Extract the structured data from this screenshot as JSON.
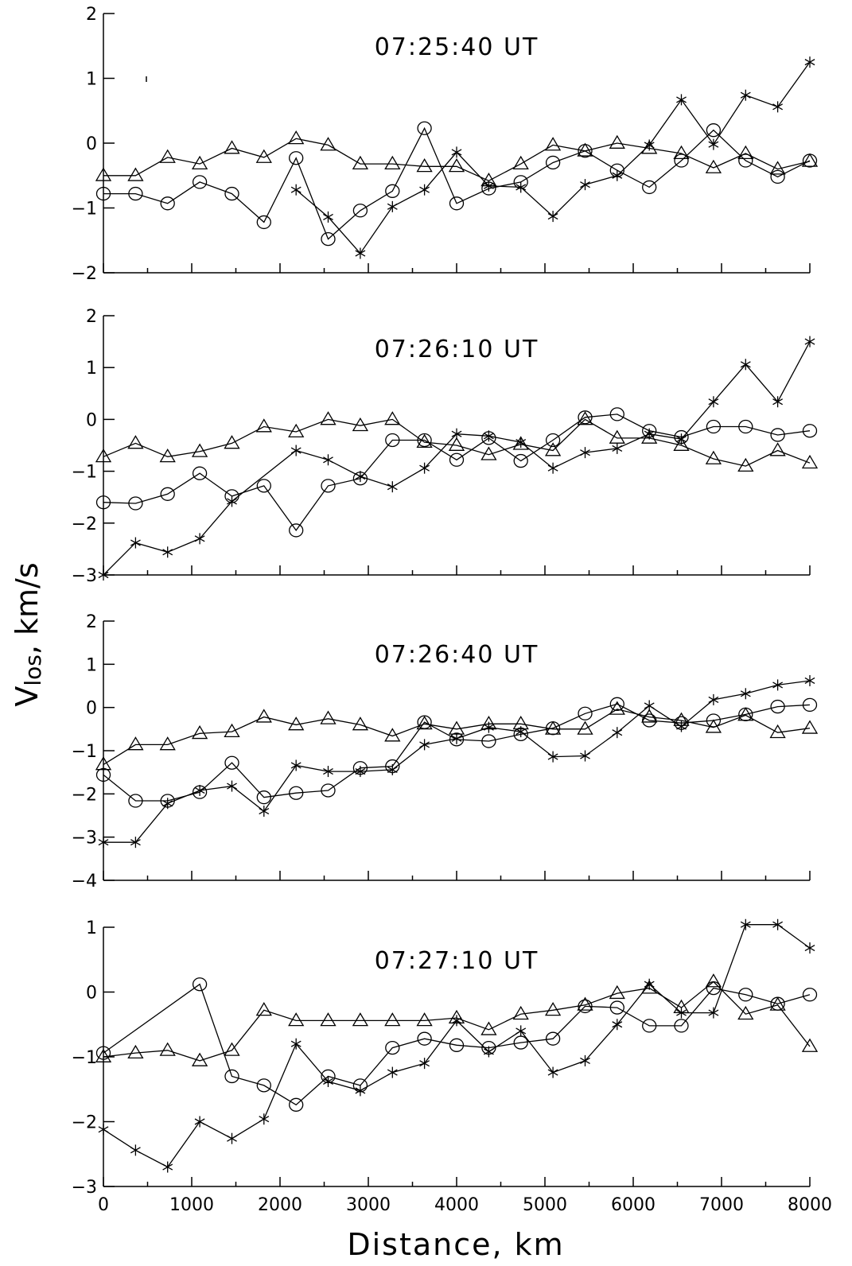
{
  "chart_data": [
    {
      "type": "line",
      "title": "07:25:40  UT",
      "x": [
        0,
        364,
        727,
        1091,
        1455,
        1818,
        2182,
        2545,
        2909,
        3273,
        3636,
        4000,
        4364,
        4727,
        5091,
        5455,
        5818,
        6182,
        6545,
        6909,
        7273,
        7636,
        8000
      ],
      "xlim": [
        0,
        8000
      ],
      "ylim": [
        -2,
        2
      ],
      "yticks": [
        -2,
        -1,
        0,
        1,
        2
      ],
      "series": [
        {
          "marker": "triangle",
          "values": [
            -0.5,
            -0.5,
            -0.22,
            -0.32,
            -0.08,
            -0.22,
            0.07,
            -0.03,
            -0.32,
            -0.32,
            -0.36,
            -0.36,
            -0.58,
            -0.32,
            -0.03,
            -0.12,
            0.0,
            -0.08,
            -0.16,
            -0.38,
            -0.16,
            -0.4,
            -0.28
          ]
        },
        {
          "marker": "circle",
          "values": [
            -0.78,
            -0.78,
            -0.93,
            -0.6,
            -0.78,
            -1.22,
            -0.23,
            -1.48,
            -1.04,
            -0.74,
            0.23,
            -0.93,
            -0.7,
            -0.6,
            -0.3,
            -0.12,
            -0.42,
            -0.68,
            -0.27,
            0.2,
            -0.27,
            -0.52,
            -0.27
          ]
        },
        {
          "marker": "star",
          "values": [
            null,
            null,
            null,
            null,
            null,
            null,
            -0.72,
            -1.14,
            -1.7,
            -0.98,
            -0.72,
            -0.14,
            -0.66,
            -0.68,
            -1.13,
            -0.64,
            -0.5,
            -0.03,
            0.67,
            -0.02,
            0.74,
            0.56,
            1.25
          ]
        }
      ]
    },
    {
      "type": "line",
      "title": "07:26:10  UT",
      "x": [
        0,
        364,
        727,
        1091,
        1455,
        1818,
        2182,
        2545,
        2909,
        3273,
        3636,
        4000,
        4364,
        4727,
        5091,
        5455,
        5818,
        6182,
        6545,
        6909,
        7273,
        7636,
        8000
      ],
      "xlim": [
        0,
        8000
      ],
      "ylim": [
        -3,
        2
      ],
      "yticks": [
        -3,
        -2,
        -1,
        0,
        1,
        2
      ],
      "series": [
        {
          "marker": "triangle",
          "values": [
            -0.72,
            -0.46,
            -0.72,
            -0.62,
            -0.46,
            -0.14,
            -0.24,
            0.0,
            -0.12,
            0.0,
            -0.44,
            -0.5,
            -0.68,
            -0.48,
            -0.6,
            0.0,
            -0.36,
            -0.36,
            -0.5,
            -0.76,
            -0.9,
            -0.6,
            -0.84
          ]
        },
        {
          "marker": "circle",
          "values": [
            -1.6,
            -1.62,
            -1.44,
            -1.04,
            -1.48,
            -1.28,
            -2.14,
            -1.28,
            -1.14,
            -0.4,
            -0.4,
            -0.78,
            -0.36,
            -0.8,
            -0.4,
            0.04,
            0.1,
            -0.22,
            -0.34,
            -0.14,
            -0.14,
            -0.3,
            -0.22
          ]
        },
        {
          "marker": "star",
          "values": [
            -3.0,
            -2.38,
            -2.56,
            -2.3,
            -1.58,
            null,
            -0.6,
            -0.78,
            -1.1,
            -1.3,
            -0.94,
            -0.28,
            -0.32,
            -0.44,
            -0.94,
            -0.64,
            -0.56,
            -0.28,
            -0.38,
            0.34,
            1.06,
            0.34,
            1.5
          ]
        }
      ]
    },
    {
      "type": "line",
      "title": "07:26:40  UT",
      "x": [
        0,
        364,
        727,
        1091,
        1455,
        1818,
        2182,
        2545,
        2909,
        3273,
        3636,
        4000,
        4364,
        4727,
        5091,
        5455,
        5818,
        6182,
        6545,
        6909,
        7273,
        7636,
        8000
      ],
      "xlim": [
        0,
        8000
      ],
      "ylim": [
        -4,
        2
      ],
      "yticks": [
        -4,
        -3,
        -2,
        -1,
        0,
        1,
        2
      ],
      "series": [
        {
          "marker": "triangle",
          "values": [
            -1.32,
            -0.86,
            -0.86,
            -0.6,
            -0.56,
            -0.22,
            -0.4,
            -0.26,
            -0.4,
            -0.66,
            -0.38,
            -0.5,
            -0.38,
            -0.38,
            -0.5,
            -0.5,
            -0.04,
            -0.22,
            -0.3,
            -0.46,
            -0.18,
            -0.58,
            -0.48
          ]
        },
        {
          "marker": "circle",
          "values": [
            -1.56,
            -2.16,
            -2.16,
            -1.96,
            -1.28,
            -2.08,
            -1.98,
            -1.92,
            -1.4,
            -1.36,
            -0.34,
            -0.74,
            -0.78,
            -0.62,
            -0.48,
            -0.14,
            0.08,
            -0.3,
            -0.36,
            -0.3,
            -0.16,
            0.02,
            0.06
          ]
        },
        {
          "marker": "star",
          "values": [
            -3.12,
            -3.12,
            -2.22,
            -1.92,
            -1.82,
            -2.4,
            -1.34,
            -1.48,
            -1.48,
            -1.44,
            -0.86,
            -0.72,
            -0.46,
            -0.56,
            -1.14,
            -1.12,
            -0.58,
            0.04,
            -0.44,
            0.18,
            0.32,
            0.52,
            0.62
          ]
        }
      ]
    },
    {
      "type": "line",
      "title": "07:27:10  UT",
      "x": [
        0,
        364,
        727,
        1091,
        1455,
        1818,
        2182,
        2545,
        2909,
        3273,
        3636,
        4000,
        4364,
        4727,
        5091,
        5455,
        5818,
        6182,
        6545,
        6909,
        7273,
        7636,
        8000
      ],
      "xlim": [
        0,
        8000
      ],
      "ylim": [
        -3,
        1
      ],
      "yticks": [
        -3,
        -2,
        -1,
        0,
        1
      ],
      "series": [
        {
          "marker": "triangle",
          "values": [
            -1.0,
            -0.94,
            -0.9,
            -1.06,
            -0.9,
            -0.28,
            -0.44,
            -0.44,
            -0.44,
            -0.44,
            -0.44,
            -0.4,
            -0.58,
            -0.34,
            -0.28,
            -0.2,
            -0.02,
            0.06,
            -0.24,
            0.16,
            -0.34,
            -0.2,
            -0.84
          ]
        },
        {
          "marker": "circle",
          "values": [
            -0.94,
            null,
            null,
            0.12,
            -1.3,
            -1.44,
            -1.74,
            -1.3,
            -1.44,
            -0.86,
            -0.72,
            -0.82,
            -0.86,
            -0.78,
            -0.72,
            -0.22,
            -0.24,
            -0.52,
            -0.52,
            0.06,
            -0.04,
            -0.18,
            -0.04
          ]
        },
        {
          "marker": "star",
          "values": [
            -2.12,
            -2.44,
            -2.7,
            -2.0,
            -2.26,
            -1.96,
            -0.8,
            -1.38,
            -1.52,
            -1.24,
            -1.1,
            -0.44,
            -0.92,
            -0.6,
            -1.24,
            -1.06,
            -0.5,
            0.12,
            -0.32,
            -0.32,
            1.04,
            1.04,
            0.68
          ]
        }
      ]
    }
  ],
  "xticks": [
    0,
    1000,
    2000,
    3000,
    4000,
    5000,
    6000,
    7000,
    8000
  ],
  "xlabel": "Distance,  km",
  "ylabel_main": "V",
  "ylabel_sub": "los",
  "ylabel_unit": ",  km/s"
}
